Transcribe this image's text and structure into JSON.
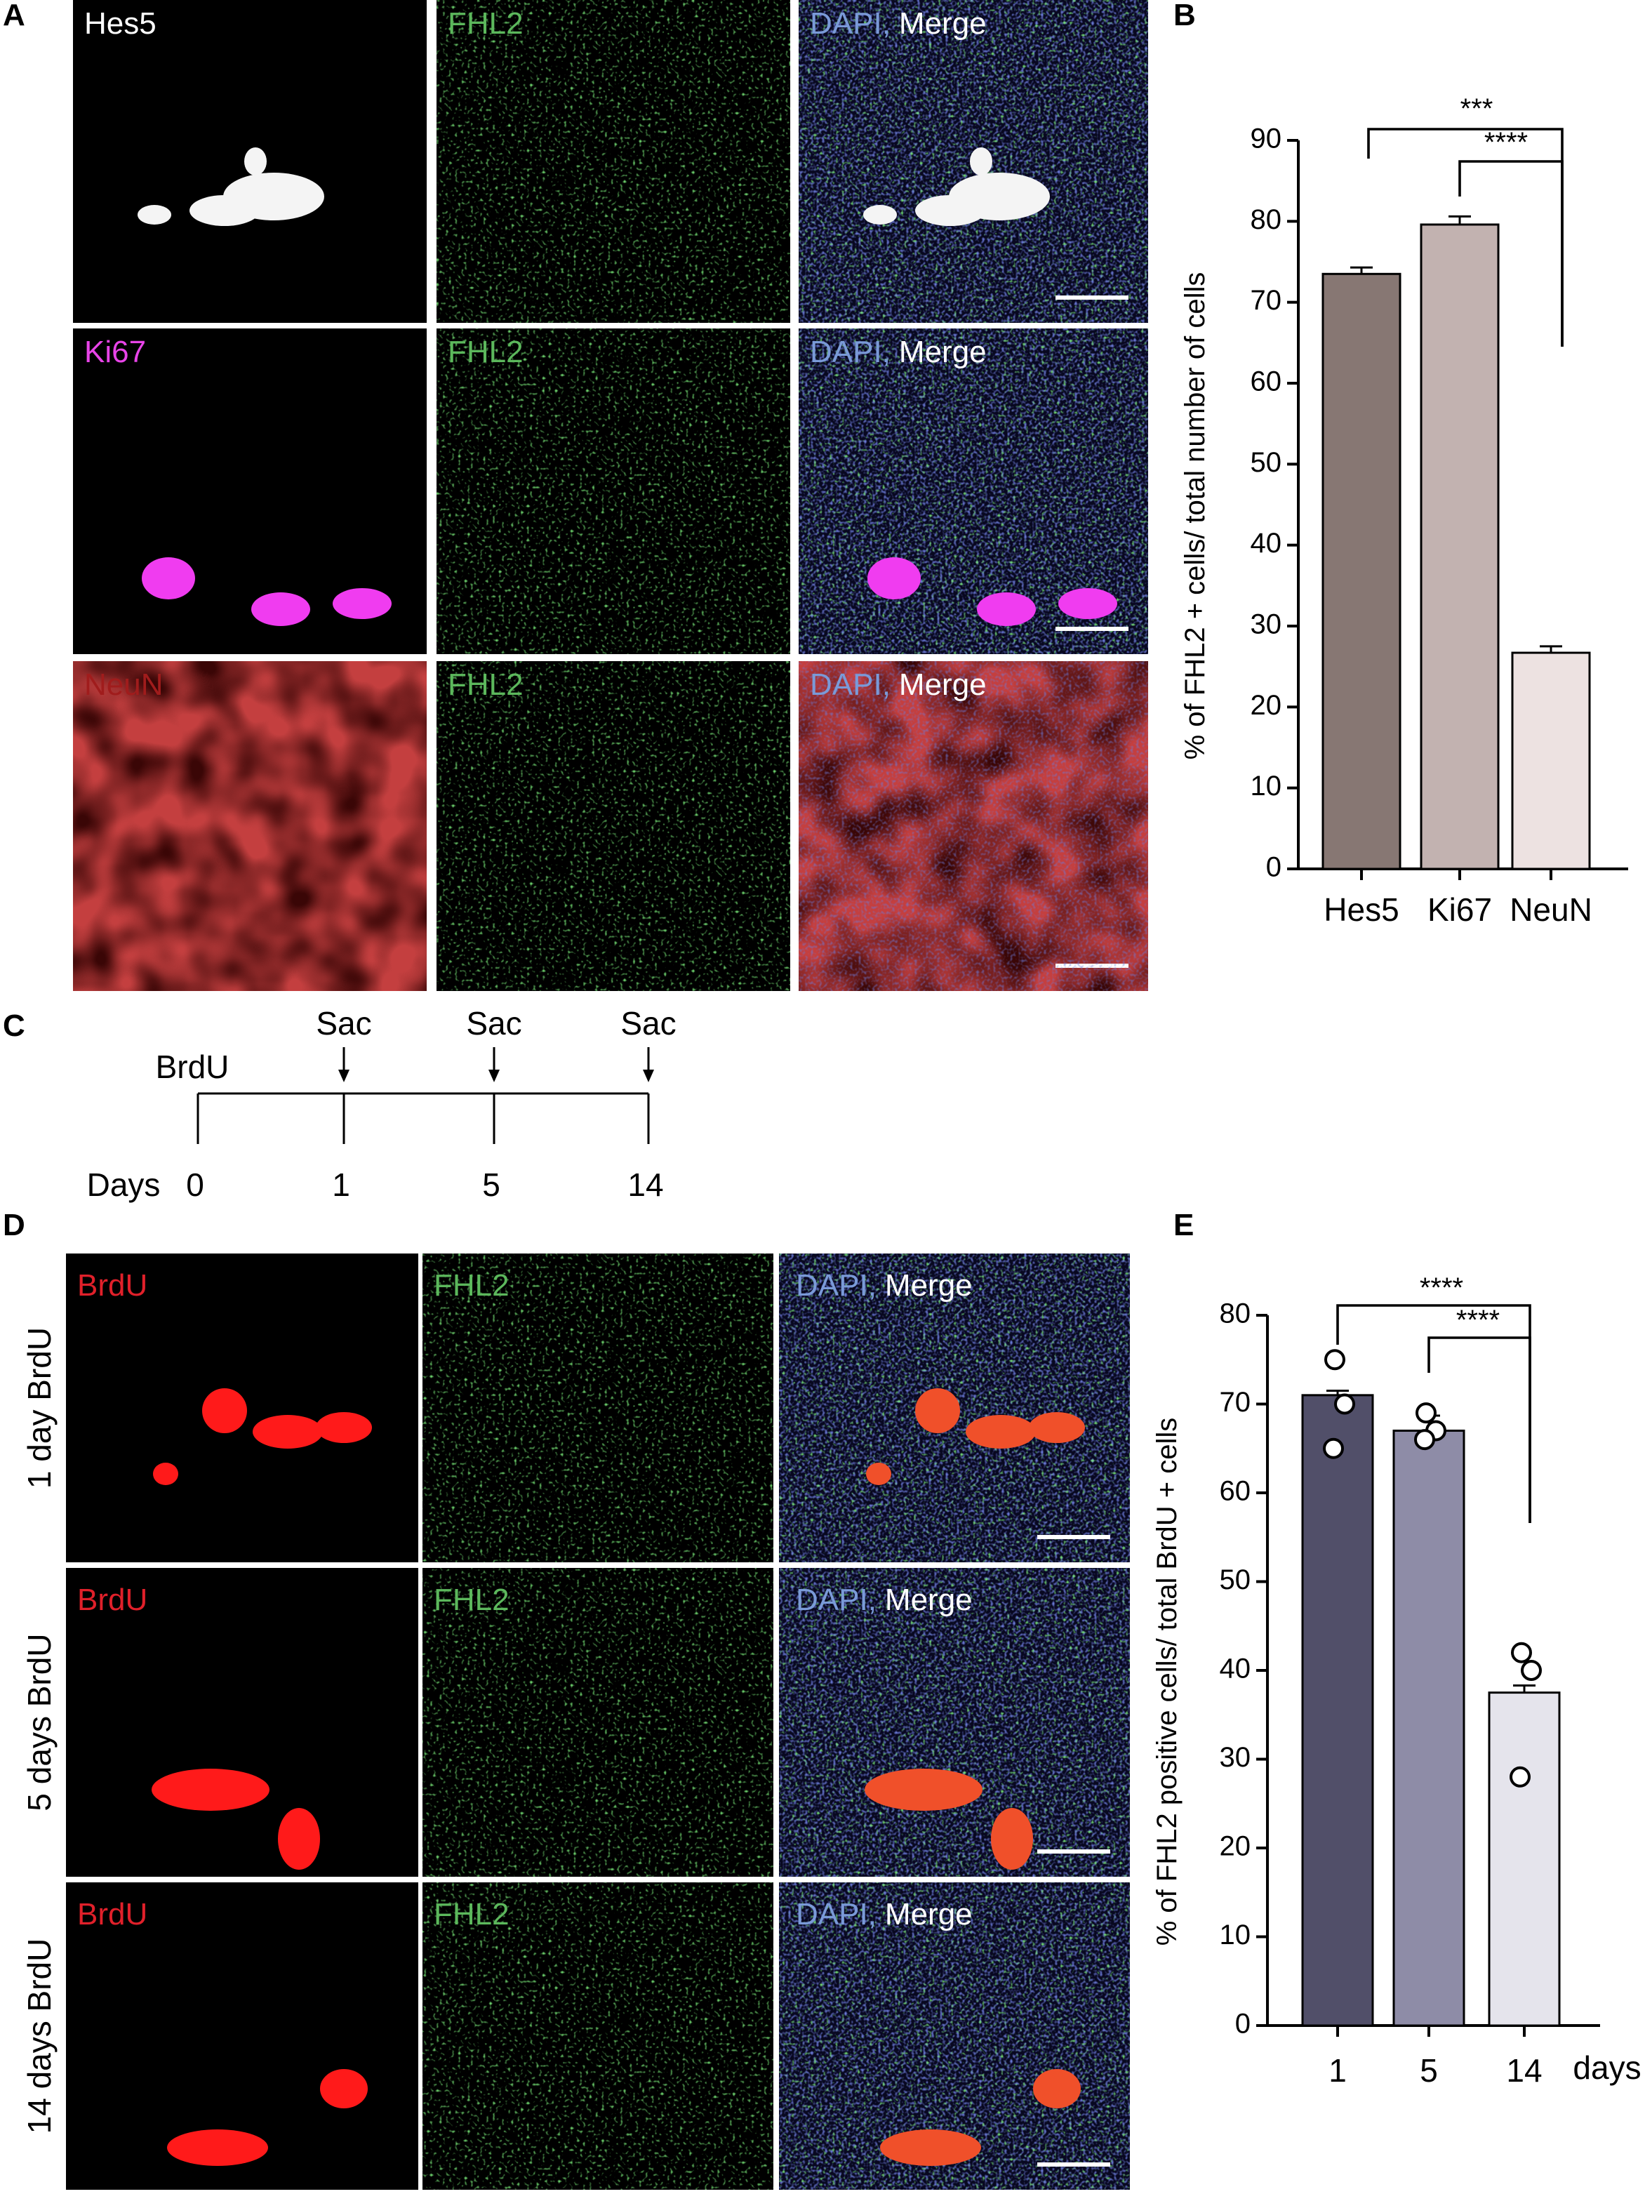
{
  "panel_labels": {
    "a": "A",
    "b": "B",
    "c": "C",
    "d": "D",
    "e": "E"
  },
  "panel_a": {
    "rows": [
      {
        "marker": "Hes5",
        "fhl2": "FHL2",
        "dapi": "DAPI,",
        "merge": "Merge"
      },
      {
        "marker": "Ki67",
        "fhl2": "FHL2",
        "dapi": "DAPI,",
        "merge": "Merge"
      },
      {
        "marker": "NeuN",
        "fhl2": "FHL2",
        "dapi": "DAPI,",
        "merge": "Merge"
      }
    ]
  },
  "panel_c": {
    "treatment": "BrdU",
    "events": [
      "Sac",
      "Sac",
      "Sac"
    ],
    "axis_label": "Days",
    "days": [
      0,
      1,
      5,
      14
    ]
  },
  "panel_d": {
    "rows": [
      {
        "condition": "1 day BrdU",
        "marker": "BrdU",
        "fhl2": "FHL2",
        "dapi": "DAPI,",
        "merge": "Merge"
      },
      {
        "condition": "5 days BrdU",
        "marker": "BrdU",
        "fhl2": "FHL2",
        "dapi": "DAPI,",
        "merge": "Merge"
      },
      {
        "condition": "14 days BrdU",
        "marker": "BrdU",
        "fhl2": "FHL2",
        "dapi": "DAPI,",
        "merge": "Merge"
      }
    ]
  },
  "chart_data": [
    {
      "type": "bar",
      "y_label": "% of FHL2 + cells/ total number of cells",
      "categories": [
        "Hes5",
        "Ki67",
        "NeuN"
      ],
      "values": [
        73.5,
        79.6,
        26.7
      ],
      "errors": [
        0.8,
        1.0,
        0.8
      ],
      "colors": [
        "#877773",
        "#c2b2b0",
        "#ede2e1"
      ],
      "ylim": [
        0,
        90
      ],
      "yticks": [
        0,
        10,
        20,
        30,
        40,
        50,
        60,
        70,
        80,
        90
      ],
      "significance": [
        "***",
        "****"
      ]
    },
    {
      "type": "bar",
      "y_label": "% of FHL2 positive cells/ total BrdU + cells",
      "x_label": "days",
      "categories": [
        "1",
        "5",
        "14"
      ],
      "values": [
        71,
        67,
        37.5
      ],
      "errors": [
        0.5,
        1.7,
        0.8
      ],
      "points": [
        [
          75,
          70,
          65
        ],
        [
          69,
          67,
          66
        ],
        [
          42,
          40,
          28
        ]
      ],
      "colors": [
        "#514f69",
        "#8e8ca7",
        "#e5e4ec"
      ],
      "ylim": [
        0,
        80
      ],
      "yticks": [
        0,
        10,
        20,
        30,
        40,
        50,
        60,
        70,
        80
      ],
      "significance": [
        "****",
        "****"
      ]
    }
  ]
}
